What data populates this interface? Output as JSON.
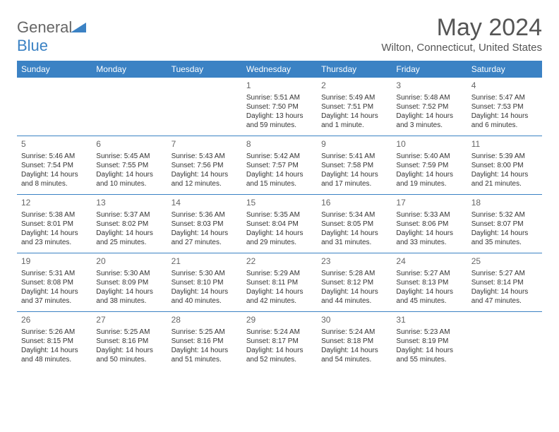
{
  "logo": {
    "general": "General",
    "blue": "Blue"
  },
  "title": "May 2024",
  "location": "Wilton, Connecticut, United States",
  "day_names": [
    "Sunday",
    "Monday",
    "Tuesday",
    "Wednesday",
    "Thursday",
    "Friday",
    "Saturday"
  ],
  "colors": {
    "header_bg": "#3b82c4",
    "header_fg": "#ffffff",
    "text": "#333333",
    "logo_grey": "#666666",
    "logo_blue": "#3b82c4"
  },
  "weeks": [
    [
      {
        "day": "",
        "sunrise": "",
        "sunset": "",
        "daylight": ""
      },
      {
        "day": "",
        "sunrise": "",
        "sunset": "",
        "daylight": ""
      },
      {
        "day": "",
        "sunrise": "",
        "sunset": "",
        "daylight": ""
      },
      {
        "day": "1",
        "sunrise": "Sunrise: 5:51 AM",
        "sunset": "Sunset: 7:50 PM",
        "daylight": "Daylight: 13 hours and 59 minutes."
      },
      {
        "day": "2",
        "sunrise": "Sunrise: 5:49 AM",
        "sunset": "Sunset: 7:51 PM",
        "daylight": "Daylight: 14 hours and 1 minute."
      },
      {
        "day": "3",
        "sunrise": "Sunrise: 5:48 AM",
        "sunset": "Sunset: 7:52 PM",
        "daylight": "Daylight: 14 hours and 3 minutes."
      },
      {
        "day": "4",
        "sunrise": "Sunrise: 5:47 AM",
        "sunset": "Sunset: 7:53 PM",
        "daylight": "Daylight: 14 hours and 6 minutes."
      }
    ],
    [
      {
        "day": "5",
        "sunrise": "Sunrise: 5:46 AM",
        "sunset": "Sunset: 7:54 PM",
        "daylight": "Daylight: 14 hours and 8 minutes."
      },
      {
        "day": "6",
        "sunrise": "Sunrise: 5:45 AM",
        "sunset": "Sunset: 7:55 PM",
        "daylight": "Daylight: 14 hours and 10 minutes."
      },
      {
        "day": "7",
        "sunrise": "Sunrise: 5:43 AM",
        "sunset": "Sunset: 7:56 PM",
        "daylight": "Daylight: 14 hours and 12 minutes."
      },
      {
        "day": "8",
        "sunrise": "Sunrise: 5:42 AM",
        "sunset": "Sunset: 7:57 PM",
        "daylight": "Daylight: 14 hours and 15 minutes."
      },
      {
        "day": "9",
        "sunrise": "Sunrise: 5:41 AM",
        "sunset": "Sunset: 7:58 PM",
        "daylight": "Daylight: 14 hours and 17 minutes."
      },
      {
        "day": "10",
        "sunrise": "Sunrise: 5:40 AM",
        "sunset": "Sunset: 7:59 PM",
        "daylight": "Daylight: 14 hours and 19 minutes."
      },
      {
        "day": "11",
        "sunrise": "Sunrise: 5:39 AM",
        "sunset": "Sunset: 8:00 PM",
        "daylight": "Daylight: 14 hours and 21 minutes."
      }
    ],
    [
      {
        "day": "12",
        "sunrise": "Sunrise: 5:38 AM",
        "sunset": "Sunset: 8:01 PM",
        "daylight": "Daylight: 14 hours and 23 minutes."
      },
      {
        "day": "13",
        "sunrise": "Sunrise: 5:37 AM",
        "sunset": "Sunset: 8:02 PM",
        "daylight": "Daylight: 14 hours and 25 minutes."
      },
      {
        "day": "14",
        "sunrise": "Sunrise: 5:36 AM",
        "sunset": "Sunset: 8:03 PM",
        "daylight": "Daylight: 14 hours and 27 minutes."
      },
      {
        "day": "15",
        "sunrise": "Sunrise: 5:35 AM",
        "sunset": "Sunset: 8:04 PM",
        "daylight": "Daylight: 14 hours and 29 minutes."
      },
      {
        "day": "16",
        "sunrise": "Sunrise: 5:34 AM",
        "sunset": "Sunset: 8:05 PM",
        "daylight": "Daylight: 14 hours and 31 minutes."
      },
      {
        "day": "17",
        "sunrise": "Sunrise: 5:33 AM",
        "sunset": "Sunset: 8:06 PM",
        "daylight": "Daylight: 14 hours and 33 minutes."
      },
      {
        "day": "18",
        "sunrise": "Sunrise: 5:32 AM",
        "sunset": "Sunset: 8:07 PM",
        "daylight": "Daylight: 14 hours and 35 minutes."
      }
    ],
    [
      {
        "day": "19",
        "sunrise": "Sunrise: 5:31 AM",
        "sunset": "Sunset: 8:08 PM",
        "daylight": "Daylight: 14 hours and 37 minutes."
      },
      {
        "day": "20",
        "sunrise": "Sunrise: 5:30 AM",
        "sunset": "Sunset: 8:09 PM",
        "daylight": "Daylight: 14 hours and 38 minutes."
      },
      {
        "day": "21",
        "sunrise": "Sunrise: 5:30 AM",
        "sunset": "Sunset: 8:10 PM",
        "daylight": "Daylight: 14 hours and 40 minutes."
      },
      {
        "day": "22",
        "sunrise": "Sunrise: 5:29 AM",
        "sunset": "Sunset: 8:11 PM",
        "daylight": "Daylight: 14 hours and 42 minutes."
      },
      {
        "day": "23",
        "sunrise": "Sunrise: 5:28 AM",
        "sunset": "Sunset: 8:12 PM",
        "daylight": "Daylight: 14 hours and 44 minutes."
      },
      {
        "day": "24",
        "sunrise": "Sunrise: 5:27 AM",
        "sunset": "Sunset: 8:13 PM",
        "daylight": "Daylight: 14 hours and 45 minutes."
      },
      {
        "day": "25",
        "sunrise": "Sunrise: 5:27 AM",
        "sunset": "Sunset: 8:14 PM",
        "daylight": "Daylight: 14 hours and 47 minutes."
      }
    ],
    [
      {
        "day": "26",
        "sunrise": "Sunrise: 5:26 AM",
        "sunset": "Sunset: 8:15 PM",
        "daylight": "Daylight: 14 hours and 48 minutes."
      },
      {
        "day": "27",
        "sunrise": "Sunrise: 5:25 AM",
        "sunset": "Sunset: 8:16 PM",
        "daylight": "Daylight: 14 hours and 50 minutes."
      },
      {
        "day": "28",
        "sunrise": "Sunrise: 5:25 AM",
        "sunset": "Sunset: 8:16 PM",
        "daylight": "Daylight: 14 hours and 51 minutes."
      },
      {
        "day": "29",
        "sunrise": "Sunrise: 5:24 AM",
        "sunset": "Sunset: 8:17 PM",
        "daylight": "Daylight: 14 hours and 52 minutes."
      },
      {
        "day": "30",
        "sunrise": "Sunrise: 5:24 AM",
        "sunset": "Sunset: 8:18 PM",
        "daylight": "Daylight: 14 hours and 54 minutes."
      },
      {
        "day": "31",
        "sunrise": "Sunrise: 5:23 AM",
        "sunset": "Sunset: 8:19 PM",
        "daylight": "Daylight: 14 hours and 55 minutes."
      },
      {
        "day": "",
        "sunrise": "",
        "sunset": "",
        "daylight": ""
      }
    ]
  ]
}
